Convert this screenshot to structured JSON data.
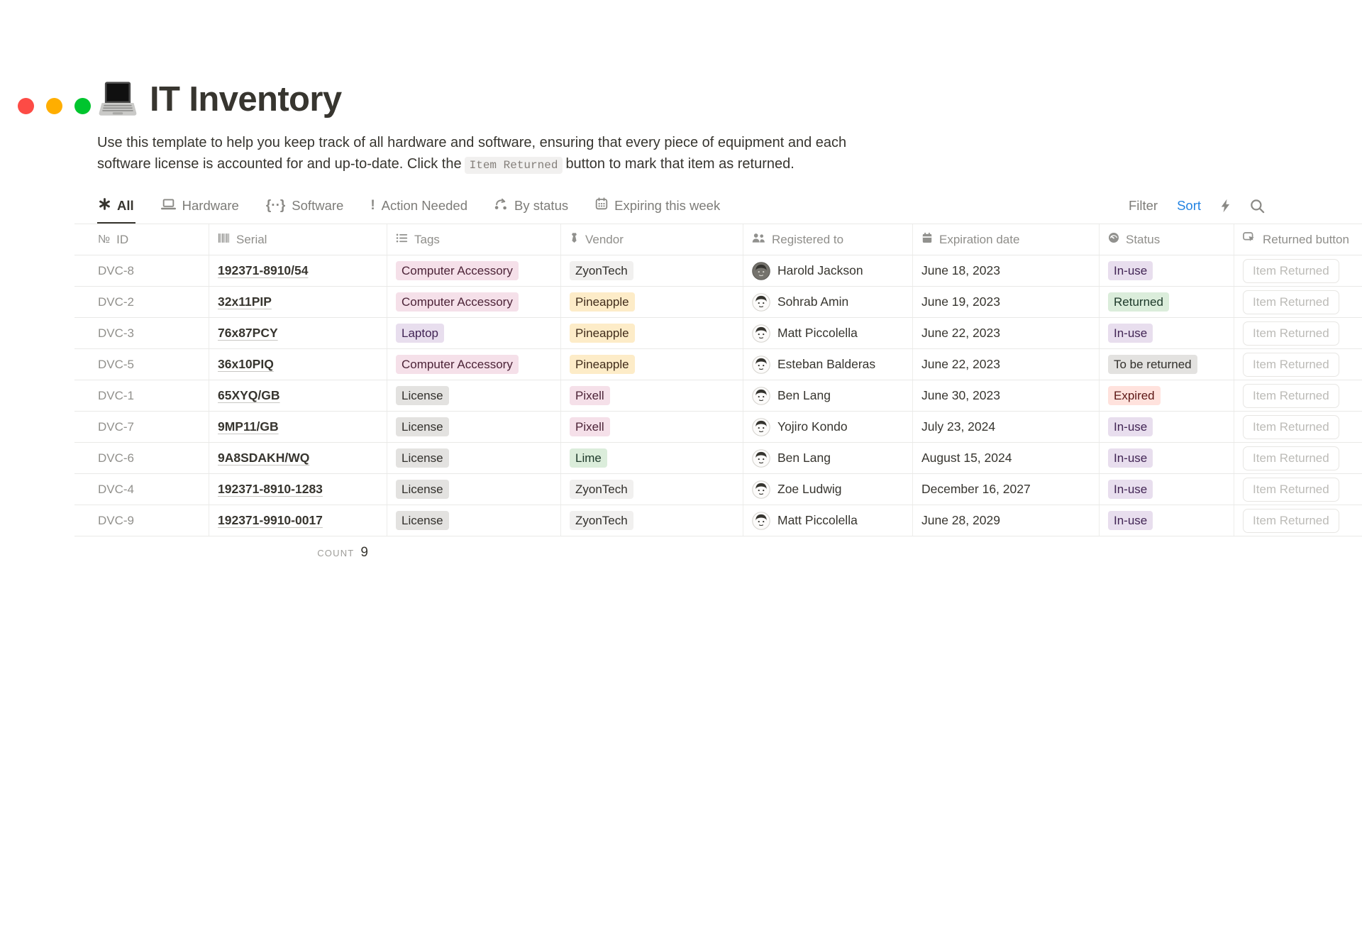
{
  "window": {
    "traffic_light_colors": {
      "close": "#FD4B45",
      "minimize": "#FFAE00",
      "zoom": "#00C52E"
    }
  },
  "header": {
    "icon": "laptop-emoji",
    "title": "IT Inventory",
    "description_line1": "Use this template to help you keep track of all hardware and software, ensuring that every piece of equipment and each",
    "description_line2_before_code": "software license is accounted for and up-to-date. Click the",
    "inline_code": "Item Returned",
    "description_line2_after_code": "button to mark that item as returned."
  },
  "toolbar": {
    "tabs": [
      {
        "label": "All",
        "icon": "asterisk-icon",
        "active": true
      },
      {
        "label": "Hardware",
        "icon": "laptop-icon",
        "active": false
      },
      {
        "label": "Software",
        "icon": "code-braces-icon",
        "icon_glyph": "{··}",
        "active": false
      },
      {
        "label": "Action Needed",
        "icon": "exclamation-icon",
        "icon_glyph": "!",
        "active": false
      },
      {
        "label": "By status",
        "icon": "status-flow-icon",
        "active": false
      },
      {
        "label": "Expiring this week",
        "icon": "calendar-outline-icon",
        "active": false
      }
    ],
    "filter_label": "Filter",
    "sort_label": "Sort",
    "sort_color": "#2383E2",
    "lightning_icon": "lightning-icon",
    "search_icon": "search-icon"
  },
  "table": {
    "columns": [
      {
        "label": "ID",
        "icon": "numero-icon",
        "icon_glyph": "№"
      },
      {
        "label": "Serial",
        "icon": "barcode-icon"
      },
      {
        "label": "Tags",
        "icon": "bulleted-list-icon"
      },
      {
        "label": "Vendor",
        "icon": "necktie-icon"
      },
      {
        "label": "Registered to",
        "icon": "people-icon"
      },
      {
        "label": "Expiration date",
        "icon": "calendar-icon"
      },
      {
        "label": "Status",
        "icon": "gauge-icon"
      },
      {
        "label": "Returned button",
        "icon": "button-click-icon"
      }
    ],
    "tag_palette": {
      "pink": {
        "bg": "#F5E0E9",
        "text": "#4C2337"
      },
      "purple": {
        "bg": "#E8DEEE",
        "text": "#412454"
      },
      "gray": {
        "bg": "#E3E2E0",
        "text": "#32302C"
      },
      "light_gray": {
        "bg": "#F1F0EF",
        "text": "#32302C"
      },
      "yellow": {
        "bg": "#FDECC8",
        "text": "#402C1B"
      },
      "green": {
        "bg": "#DBEDDB",
        "text": "#1C3829"
      },
      "red": {
        "bg": "#FFE2DD",
        "text": "#5D1715"
      }
    },
    "rows": [
      {
        "id": "DVC-8",
        "serial": "192371-8910/54",
        "tag": {
          "label": "Computer Accessory",
          "color": "pink"
        },
        "vendor": {
          "label": "ZyonTech",
          "color": "light_gray"
        },
        "registered_to": "Harold Jackson",
        "avatar": "dark",
        "expiration_date": "June 18, 2023",
        "status": {
          "label": "In-use",
          "color": "purple"
        },
        "returned_button": "Item Returned"
      },
      {
        "id": "DVC-2",
        "serial": "32x11PIP",
        "tag": {
          "label": "Computer Accessory",
          "color": "pink"
        },
        "vendor": {
          "label": "Pineapple",
          "color": "yellow"
        },
        "registered_to": "Sohrab Amin",
        "avatar": "light",
        "expiration_date": "June 19, 2023",
        "status": {
          "label": "Returned",
          "color": "green"
        },
        "returned_button": "Item Returned"
      },
      {
        "id": "DVC-3",
        "serial": "76x87PCY",
        "tag": {
          "label": "Laptop",
          "color": "purple"
        },
        "vendor": {
          "label": "Pineapple",
          "color": "yellow"
        },
        "registered_to": "Matt Piccolella",
        "avatar": "light",
        "expiration_date": "June 22, 2023",
        "status": {
          "label": "In-use",
          "color": "purple"
        },
        "returned_button": "Item Returned"
      },
      {
        "id": "DVC-5",
        "serial": "36x10PIQ",
        "tag": {
          "label": "Computer Accessory",
          "color": "pink"
        },
        "vendor": {
          "label": "Pineapple",
          "color": "yellow"
        },
        "registered_to": "Esteban Balderas",
        "avatar": "light",
        "expiration_date": "June 22, 2023",
        "status": {
          "label": "To be returned",
          "color": "gray"
        },
        "returned_button": "Item Returned"
      },
      {
        "id": "DVC-1",
        "serial": "65XYQ/GB",
        "tag": {
          "label": "License",
          "color": "gray"
        },
        "vendor": {
          "label": "Pixell",
          "color": "pink"
        },
        "registered_to": "Ben Lang",
        "avatar": "light",
        "expiration_date": "June 30, 2023",
        "status": {
          "label": "Expired",
          "color": "red"
        },
        "returned_button": "Item Returned"
      },
      {
        "id": "DVC-7",
        "serial": "9MP11/GB",
        "tag": {
          "label": "License",
          "color": "gray"
        },
        "vendor": {
          "label": "Pixell",
          "color": "pink"
        },
        "registered_to": "Yojiro Kondo",
        "avatar": "light",
        "expiration_date": "July 23, 2024",
        "status": {
          "label": "In-use",
          "color": "purple"
        },
        "returned_button": "Item Returned"
      },
      {
        "id": "DVC-6",
        "serial": "9A8SDAKH/WQ",
        "tag": {
          "label": "License",
          "color": "gray"
        },
        "vendor": {
          "label": "Lime",
          "color": "green"
        },
        "registered_to": "Ben Lang",
        "avatar": "light",
        "expiration_date": "August 15, 2024",
        "status": {
          "label": "In-use",
          "color": "purple"
        },
        "returned_button": "Item Returned"
      },
      {
        "id": "DVC-4",
        "serial": "192371-8910-1283",
        "tag": {
          "label": "License",
          "color": "gray"
        },
        "vendor": {
          "label": "ZyonTech",
          "color": "light_gray"
        },
        "registered_to": "Zoe Ludwig",
        "avatar": "light",
        "expiration_date": "December 16, 2027",
        "status": {
          "label": "In-use",
          "color": "purple"
        },
        "returned_button": "Item Returned"
      },
      {
        "id": "DVC-9",
        "serial": "192371-9910-0017",
        "tag": {
          "label": "License",
          "color": "gray"
        },
        "vendor": {
          "label": "ZyonTech",
          "color": "light_gray"
        },
        "registered_to": "Matt Piccolella",
        "avatar": "light",
        "expiration_date": "June 28, 2029",
        "status": {
          "label": "In-use",
          "color": "purple"
        },
        "returned_button": "Item Returned"
      }
    ],
    "count_label": "COUNT",
    "count_value": "9"
  }
}
